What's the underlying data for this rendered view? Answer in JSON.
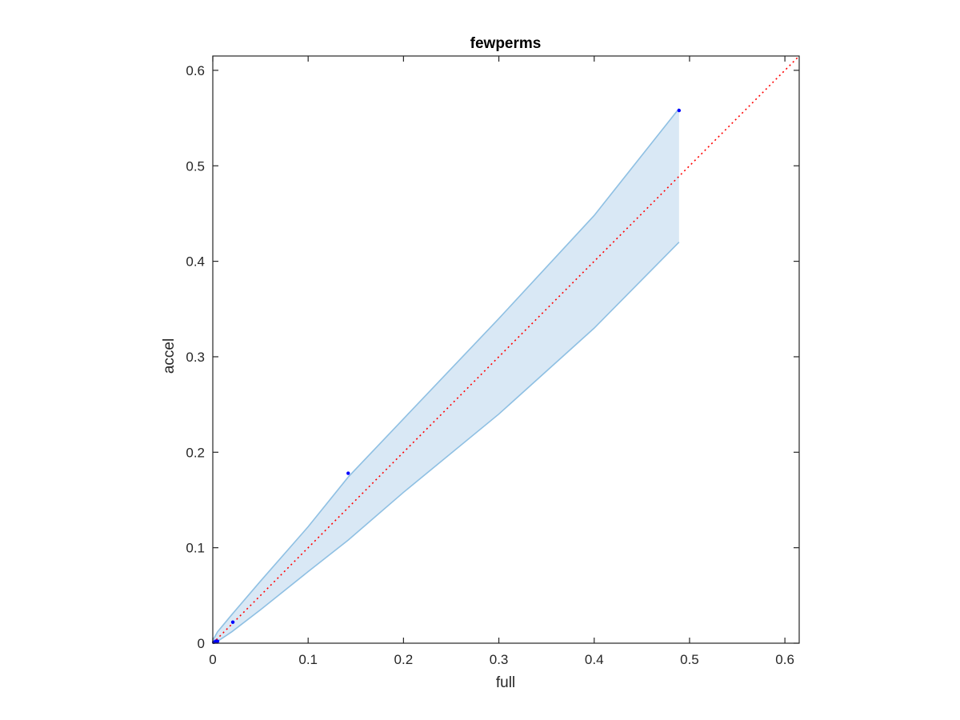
{
  "chart_data": {
    "type": "scatter",
    "title": "fewperms",
    "xlabel": "full",
    "ylabel": "accel",
    "xlim": [
      0,
      0.615
    ],
    "ylim": [
      0,
      0.615
    ],
    "xticks": [
      0,
      0.1,
      0.2,
      0.3,
      0.4,
      0.5,
      0.6
    ],
    "yticks": [
      0,
      0.1,
      0.2,
      0.3,
      0.4,
      0.5,
      0.6
    ],
    "xtick_labels": [
      "0",
      "0.1",
      "0.2",
      "0.3",
      "0.4",
      "0.5",
      "0.6"
    ],
    "ytick_labels": [
      "0",
      "0.1",
      "0.2",
      "0.3",
      "0.4",
      "0.5",
      "0.6"
    ],
    "grid": false,
    "points": {
      "x": [
        0.001,
        0.003,
        0.005,
        0.021,
        0.142,
        0.489
      ],
      "y": [
        0.001,
        0.002,
        0.002,
        0.022,
        0.178,
        0.558
      ],
      "color": "#0000ff"
    },
    "band": {
      "x": [
        0,
        0.005,
        0.02,
        0.05,
        0.1,
        0.142,
        0.2,
        0.3,
        0.4,
        0.489
      ],
      "upper": [
        0.003,
        0.012,
        0.03,
        0.065,
        0.122,
        0.174,
        0.235,
        0.34,
        0.448,
        0.56
      ],
      "lower": [
        0,
        0.002,
        0.012,
        0.035,
        0.075,
        0.108,
        0.158,
        0.24,
        0.33,
        0.42
      ],
      "fill_color": "#d9e8f5",
      "edge_color": "#8fc0e3"
    },
    "reference_line": {
      "x": [
        0,
        0.615
      ],
      "y": [
        0,
        0.615
      ],
      "color": "#ff0000",
      "style": "dotted"
    }
  }
}
